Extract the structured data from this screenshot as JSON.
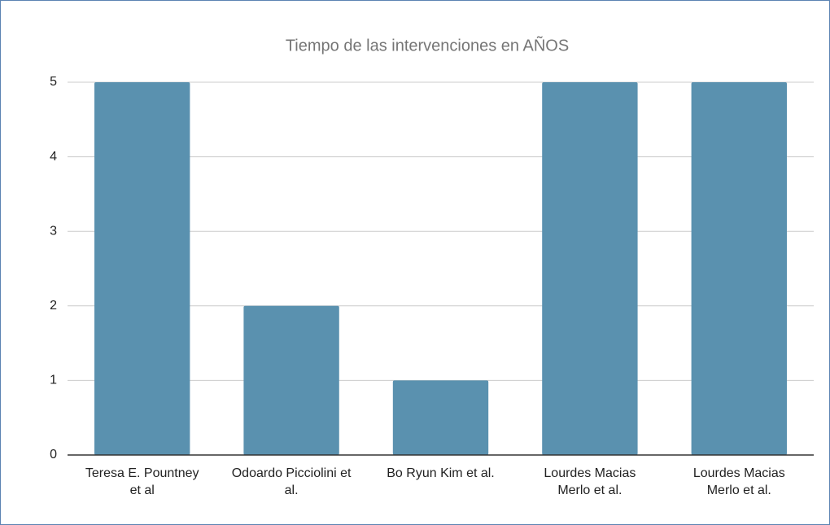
{
  "chart_data": {
    "type": "bar",
    "title": "Tiempo de las intervenciones en AÑOS",
    "categories": [
      "Teresa E. Pountney et al",
      "Odoardo Picciolini et al.",
      "Bo Ryun Kim et al.",
      "Lourdes Macias Merlo et al.",
      "Lourdes Macias Merlo et al."
    ],
    "values": [
      5,
      2,
      1,
      5,
      5
    ],
    "color": "#5a91af",
    "ylim": [
      0,
      5
    ],
    "yticks": [
      0,
      1,
      2,
      3,
      4,
      5
    ],
    "grid": true
  }
}
